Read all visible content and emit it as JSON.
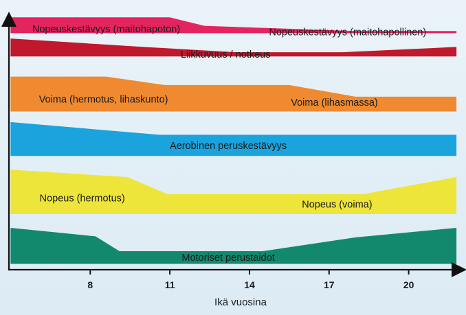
{
  "chart_data": {
    "type": "area",
    "title": "",
    "xlabel": "Ikä vuosina",
    "ylabel": "",
    "x_ticks": [
      8,
      11,
      14,
      17,
      20
    ],
    "xlim": [
      4.6,
      21.9
    ],
    "grid": false,
    "legend": "none",
    "bands": [
      {
        "id": "nopeuskestavyys",
        "color": "#e3245f",
        "labels": [
          {
            "text": "Nopeuskestävyys (maitohapoton)",
            "age": 8.6
          },
          {
            "text": "Nopeuskestävyys (maitohapollinen)",
            "age": 17.7
          }
        ],
        "top": [
          [
            5.0,
            0.6
          ],
          [
            11.0,
            0.6
          ],
          [
            12.3,
            1.4
          ],
          [
            18.0,
            1.9
          ],
          [
            21.8,
            1.9
          ]
        ],
        "bottom": [
          [
            5.0,
            2.1
          ],
          [
            21.8,
            2.1
          ]
        ]
      },
      {
        "id": "liikkuvuus",
        "color": "#c0182c",
        "labels": [
          {
            "text": "Liikkuvuus / notkeus",
            "age": 13.1
          }
        ],
        "top": [
          [
            5.0,
            2.6
          ],
          [
            10.0,
            3.4
          ],
          [
            13.5,
            3.9
          ],
          [
            17.5,
            3.9
          ],
          [
            21.8,
            3.4
          ]
        ],
        "bottom": [
          [
            5.0,
            4.3
          ],
          [
            21.8,
            4.3
          ]
        ]
      },
      {
        "id": "voima",
        "color": "#ef8a30",
        "labels": [
          {
            "text": "Voima (hermotus, lihaskunto)",
            "age": 8.5
          },
          {
            "text": "Voima (lihasmassa)",
            "age": 17.2
          }
        ],
        "top": [
          [
            5.0,
            6.2
          ],
          [
            8.6,
            6.2
          ],
          [
            10.8,
            7.0
          ],
          [
            15.5,
            7.0
          ],
          [
            18.0,
            8.1
          ],
          [
            21.8,
            8.1
          ]
        ],
        "bottom": [
          [
            5.0,
            9.5
          ],
          [
            21.8,
            9.5
          ]
        ]
      },
      {
        "id": "aerobinen",
        "color": "#1aa3dc",
        "labels": [
          {
            "text": "Aerobinen peruskestävyys",
            "age": 13.2
          }
        ],
        "top": [
          [
            5.0,
            10.5
          ],
          [
            10.6,
            11.7
          ],
          [
            21.8,
            11.7
          ]
        ],
        "bottom": [
          [
            5.0,
            13.7
          ],
          [
            21.8,
            13.7
          ]
        ]
      },
      {
        "id": "nopeus",
        "color": "#ede53a",
        "labels": [
          {
            "text": "Nopeus (hermotus)",
            "age": 7.7
          },
          {
            "text": "Nopeus (voima)",
            "age": 17.3
          }
        ],
        "top": [
          [
            5.0,
            15.0
          ],
          [
            9.4,
            15.7
          ],
          [
            10.9,
            17.3
          ],
          [
            18.3,
            17.3
          ],
          [
            21.8,
            15.7
          ]
        ],
        "bottom": [
          [
            5.0,
            19.2
          ],
          [
            21.8,
            19.2
          ]
        ]
      },
      {
        "id": "motoriset",
        "color": "#12896c",
        "labels": [
          {
            "text": "Motoriset perustaidot",
            "age": 13.2
          }
        ],
        "top": [
          [
            5.0,
            20.5
          ],
          [
            8.2,
            21.3
          ],
          [
            9.1,
            22.7
          ],
          [
            14.5,
            22.7
          ],
          [
            18.0,
            21.4
          ],
          [
            21.8,
            20.5
          ]
        ],
        "bottom": [
          [
            5.0,
            23.9
          ],
          [
            21.8,
            23.9
          ]
        ]
      }
    ]
  }
}
